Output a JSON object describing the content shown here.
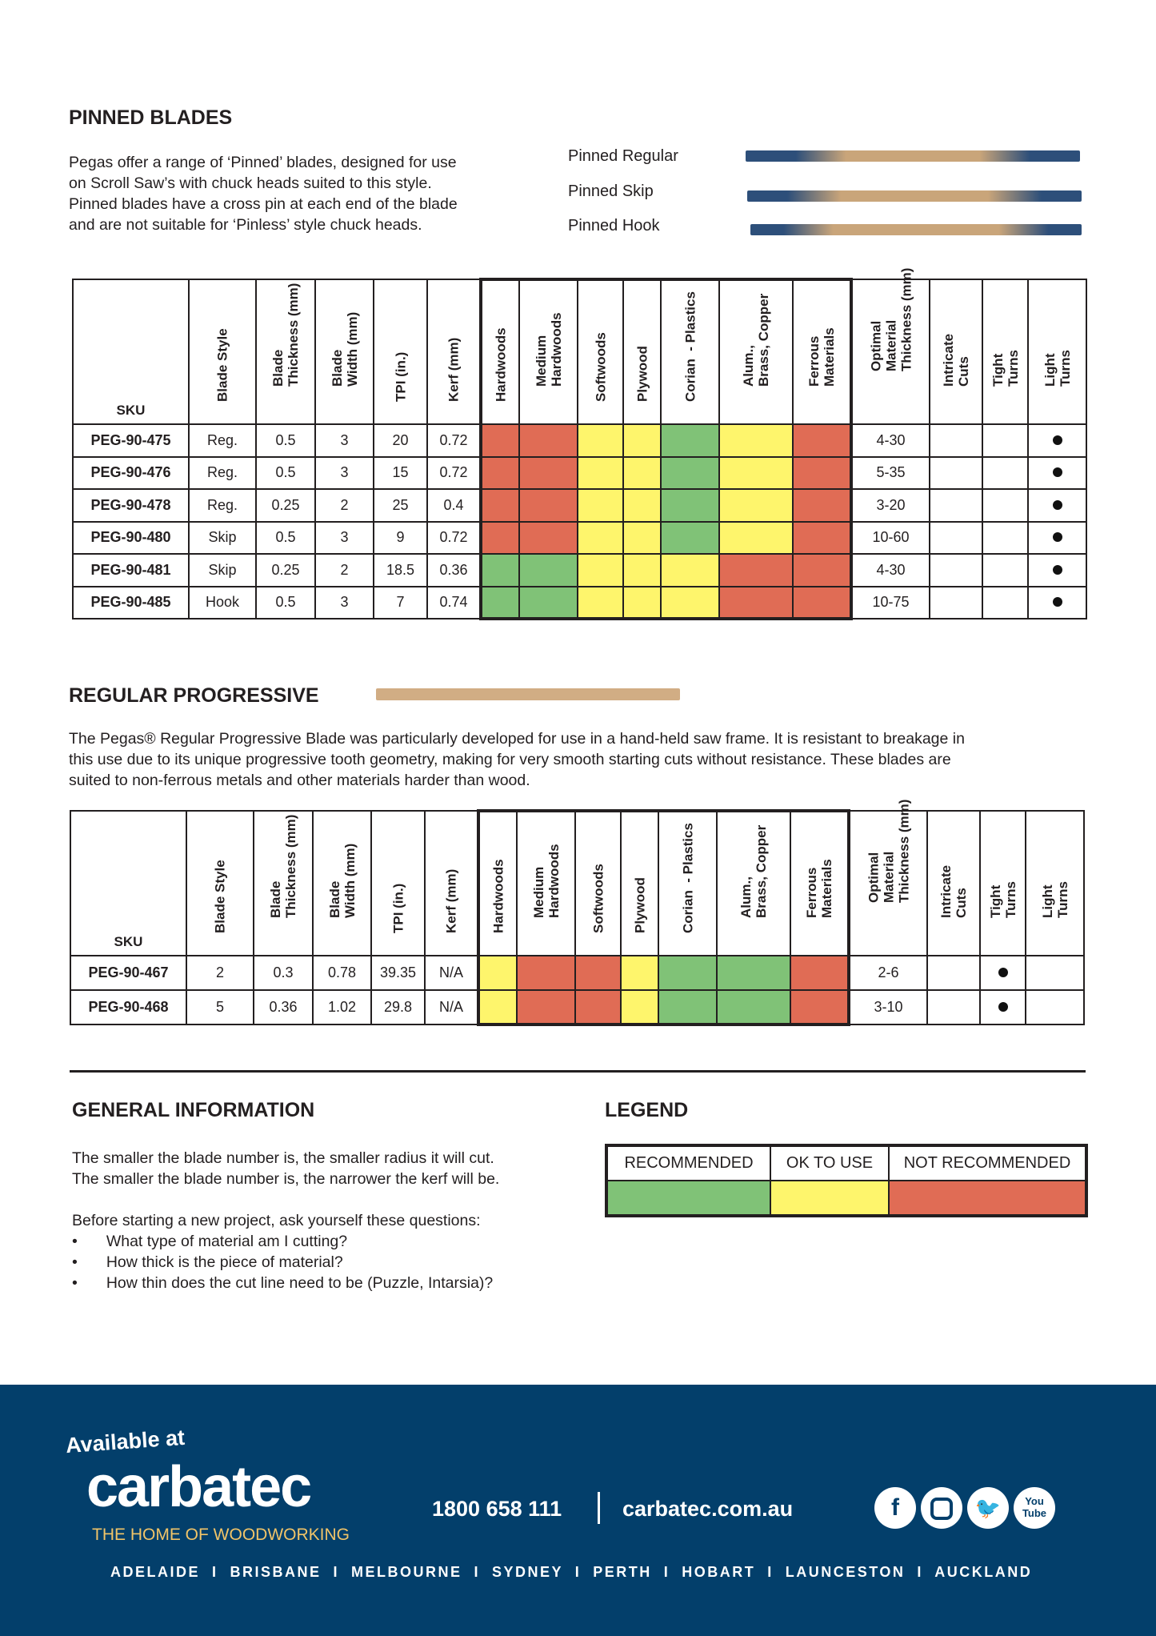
{
  "pinned": {
    "title": "PINNED BLADES",
    "paragraph": [
      "Pegas offer a range of ‘Pinned’ blades, designed for use",
      "on Scroll Saw’s with chuck heads suited to this style.",
      "Pinned blades have a cross pin at each end of the blade",
      "and are not suitable for ‘Pinless’ style chuck heads."
    ],
    "blade_labels": [
      "Pinned Regular",
      "Pinned Skip",
      "Pinned Hook"
    ]
  },
  "colors": {
    "R": "#e06c55",
    "Y": "#fef56c",
    "G": "#80c277"
  },
  "headers": [
    "SKU",
    "Blade Style",
    "Blade\nThickness (mm)",
    "Blade\nWidth (mm)",
    "TPI (in.)",
    "Kerf (mm)",
    "Hardwoods",
    "Medium\nHardwoods",
    "Softwoods",
    "Plywood",
    "Corian  - Plastics",
    "Alum.,\nBrass, Copper",
    "Ferrous\nMaterials",
    "Optimal\nMaterial\nThickness (mm)",
    "Intricate\nCuts",
    "Tight\nTurns",
    "Light\nTurns"
  ],
  "table1": [
    {
      "sku": "PEG-90-475",
      "style": "Reg.",
      "thick": "0.5",
      "width": "3",
      "tpi": "20",
      "kerf": "0.72",
      "mat": [
        "R",
        "R",
        "Y",
        "Y",
        "G",
        "Y",
        "R"
      ],
      "opt": "4-30",
      "intricate": false,
      "tight": false,
      "light": true
    },
    {
      "sku": "PEG-90-476",
      "style": "Reg.",
      "thick": "0.5",
      "width": "3",
      "tpi": "15",
      "kerf": "0.72",
      "mat": [
        "R",
        "R",
        "Y",
        "Y",
        "G",
        "Y",
        "R"
      ],
      "opt": "5-35",
      "intricate": false,
      "tight": false,
      "light": true
    },
    {
      "sku": "PEG-90-478",
      "style": "Reg.",
      "thick": "0.25",
      "width": "2",
      "tpi": "25",
      "kerf": "0.4",
      "mat": [
        "R",
        "R",
        "Y",
        "Y",
        "G",
        "Y",
        "R"
      ],
      "opt": "3-20",
      "intricate": false,
      "tight": false,
      "light": true
    },
    {
      "sku": "PEG-90-480",
      "style": "Skip",
      "thick": "0.5",
      "width": "3",
      "tpi": "9",
      "kerf": "0.72",
      "mat": [
        "R",
        "R",
        "Y",
        "Y",
        "G",
        "Y",
        "R"
      ],
      "opt": "10-60",
      "intricate": false,
      "tight": false,
      "light": true
    },
    {
      "sku": "PEG-90-481",
      "style": "Skip",
      "thick": "0.25",
      "width": "2",
      "tpi": "18.5",
      "kerf": "0.36",
      "mat": [
        "G",
        "G",
        "Y",
        "Y",
        "Y",
        "R",
        "R"
      ],
      "opt": "4-30",
      "intricate": false,
      "tight": false,
      "light": true
    },
    {
      "sku": "PEG-90-485",
      "style": "Hook",
      "thick": "0.5",
      "width": "3",
      "tpi": "7",
      "kerf": "0.74",
      "mat": [
        "G",
        "G",
        "Y",
        "Y",
        "Y",
        "R",
        "R"
      ],
      "opt": "10-75",
      "intricate": false,
      "tight": false,
      "light": true
    }
  ],
  "progressive": {
    "title": "REGULAR PROGRESSIVE",
    "paragraph": [
      "The Pegas® Regular Progressive Blade was particularly developed for use in a hand-held saw frame. It is resistant to breakage in",
      "this use due to its unique progressive tooth geometry, making for very smooth starting cuts without resistance. These blades are",
      "suited to non-ferrous metals and other materials harder than wood."
    ]
  },
  "table2": [
    {
      "sku": "PEG-90-467",
      "style": "2",
      "thick": "0.3",
      "width": "0.78",
      "tpi": "39.35",
      "kerf": "N/A",
      "mat": [
        "Y",
        "R",
        "R",
        "Y",
        "G",
        "G",
        "R"
      ],
      "opt": "2-6",
      "intricate": false,
      "tight": true,
      "light": false
    },
    {
      "sku": "PEG-90-468",
      "style": "5",
      "thick": "0.36",
      "width": "1.02",
      "tpi": "29.8",
      "kerf": "N/A",
      "mat": [
        "Y",
        "R",
        "R",
        "Y",
        "G",
        "G",
        "R"
      ],
      "opt": "3-10",
      "intricate": false,
      "tight": true,
      "light": false
    }
  ],
  "general": {
    "title": "GENERAL INFORMATION",
    "lines": [
      "The smaller the blade number is, the smaller radius it will cut.",
      "The smaller the blade number is, the narrower the kerf will be."
    ],
    "intro": "Before starting a new project, ask yourself these questions:",
    "bullets": [
      "What type of material am I cutting?",
      "How thick is the piece of material?",
      "How thin does the cut line need to be (Puzzle, Intarsia)?"
    ]
  },
  "legend": {
    "title": "LEGEND",
    "items": [
      {
        "label": "RECOMMENDED",
        "color": "#80c277"
      },
      {
        "label": "OK TO USE",
        "color": "#fef56c"
      },
      {
        "label": "NOT RECOMMENDED",
        "color": "#e06c55"
      }
    ]
  },
  "footer": {
    "available": "Available at",
    "brand": "carbatec",
    "tagline": "THE HOME OF WOODWORKING",
    "phone": "1800 658 111",
    "website": "carbatec.com.au",
    "cities": "ADELAIDE  I  BRISBANE  I  MELBOURNE  I  SYDNEY  I  PERTH  I  HOBART  I  LAUNCESTON  I  AUCKLAND",
    "social": [
      "facebook-icon",
      "instagram-icon",
      "twitter-icon",
      "youtube-icon"
    ],
    "youtube_text": "You Tube",
    "bg": "#033f6b",
    "tagline_color": "#f1c468"
  }
}
